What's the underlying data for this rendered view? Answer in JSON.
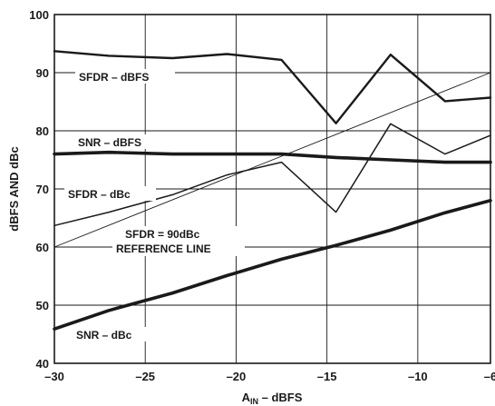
{
  "chart_data": {
    "type": "line",
    "xlabel_main": "A",
    "xlabel_sub": "IN",
    "xlabel_rest": " – dBFS",
    "ylabel": "dBFS AND dBc",
    "xlim": [
      -30,
      -6
    ],
    "ylim": [
      40,
      100
    ],
    "xticks": [
      "–30",
      "–25",
      "–20",
      "–15",
      "–10",
      "–6"
    ],
    "xtick_values": [
      -30,
      -25,
      -20,
      -15,
      -10,
      -6
    ],
    "yticks": [
      "40",
      "50",
      "60",
      "70",
      "80",
      "90",
      "100"
    ],
    "ytick_values": [
      40,
      50,
      60,
      70,
      80,
      90,
      100
    ],
    "x_gridlines": [
      -30,
      -25,
      -20,
      -15,
      -10,
      -6
    ],
    "y_gridlines": [
      40,
      50,
      60,
      70,
      80,
      90,
      100
    ],
    "grid": true,
    "series": [
      {
        "name": "SFDR – dBFS",
        "weight": "thick",
        "x": [
          -30,
          -27,
          -23.5,
          -20.5,
          -17.5,
          -14.5,
          -11.5,
          -8.5,
          -6
        ],
        "y": [
          93.7,
          92.9,
          92.5,
          93.2,
          92.2,
          81.3,
          93.1,
          85.1,
          85.7
        ]
      },
      {
        "name": "SNR – dBFS",
        "weight": "extra-thick",
        "x": [
          -30,
          -27,
          -23.5,
          -20.5,
          -17.5,
          -14.5,
          -11.5,
          -8.5,
          -6
        ],
        "y": [
          76.0,
          76.3,
          76.0,
          76.0,
          76.0,
          75.4,
          75.0,
          74.6,
          74.6
        ]
      },
      {
        "name": "SFDR – dBc",
        "weight": "medium",
        "x": [
          -30,
          -27,
          -23.5,
          -20.5,
          -17.5,
          -14.5,
          -11.5,
          -8.5,
          -6
        ],
        "y": [
          63.7,
          66.0,
          69.0,
          72.4,
          74.6,
          66.0,
          81.2,
          76.0,
          79.2
        ]
      },
      {
        "name": "SNR – dBc",
        "weight": "extra-thick",
        "x": [
          -30,
          -27,
          -23.5,
          -20.5,
          -17.5,
          -14.5,
          -11.5,
          -8.5,
          -6
        ],
        "y": [
          45.9,
          49.1,
          52.1,
          55.1,
          57.9,
          60.3,
          62.9,
          65.9,
          68.0
        ]
      },
      {
        "name": "SFDR = 90dBc REFERENCE LINE",
        "weight": "thin",
        "x": [
          -30,
          -6
        ],
        "y": [
          60,
          90
        ]
      }
    ],
    "annotations": {
      "sfdr_dbfs": "SFDR – dBFS",
      "snr_dbfs": "SNR – dBFS",
      "sfdr_dbc": "SFDR – dBc",
      "ref_line_1": "SFDR = 90dBc",
      "ref_line_2": "REFERENCE LINE",
      "snr_dbc": "SNR – dBc"
    }
  }
}
